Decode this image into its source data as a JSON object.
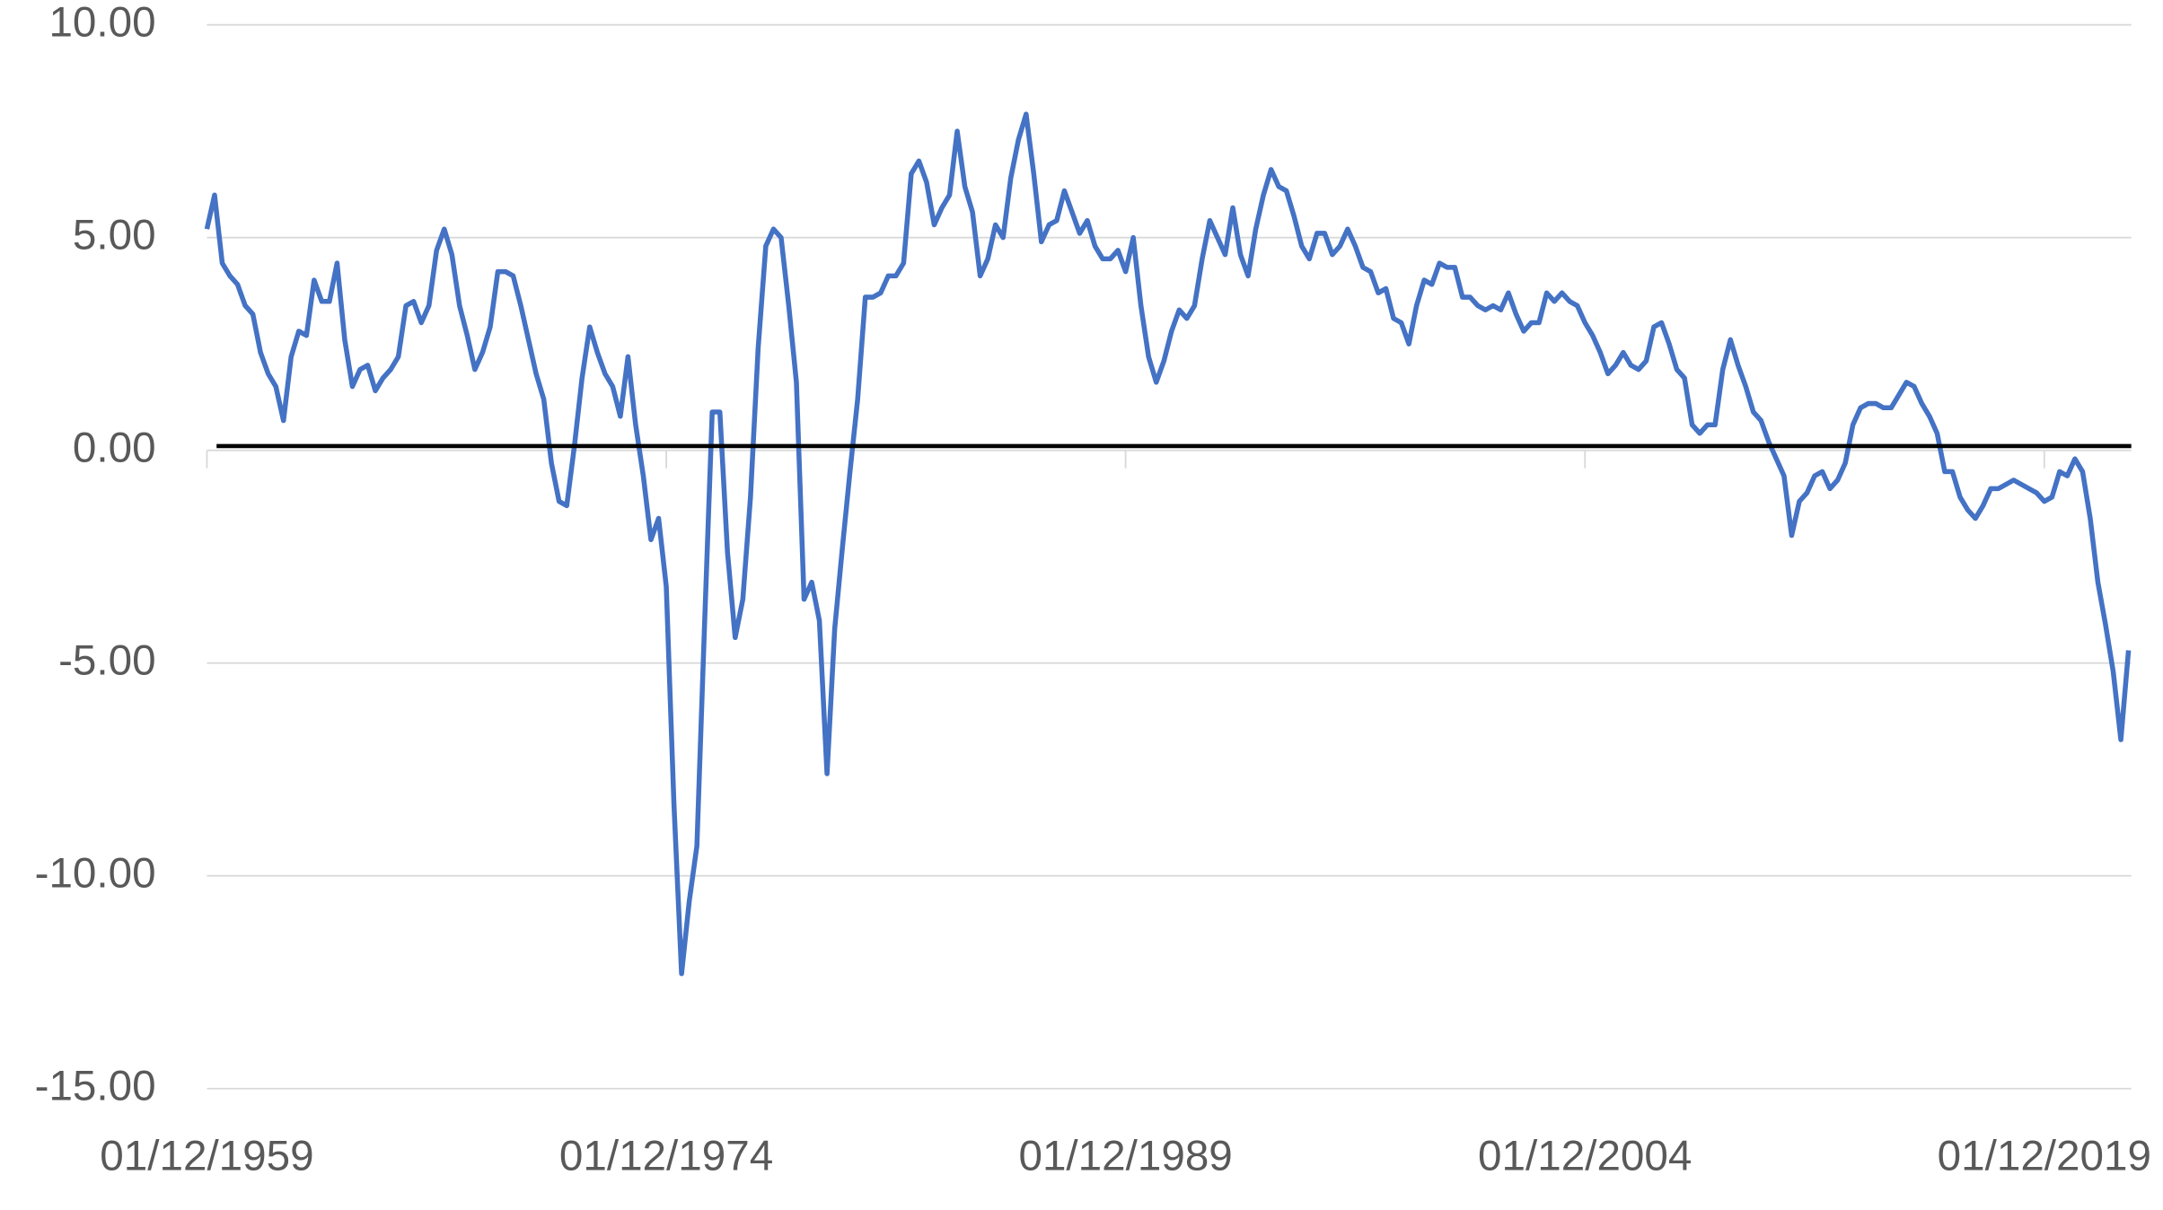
{
  "chart_data": {
    "type": "line",
    "x": [
      "01/12/1959",
      "01/03/1960",
      "01/06/1960",
      "01/09/1960",
      "01/12/1960",
      "01/03/1961",
      "01/06/1961",
      "01/09/1961",
      "01/12/1961",
      "01/03/1962",
      "01/06/1962",
      "01/09/1962",
      "01/12/1962",
      "01/03/1963",
      "01/06/1963",
      "01/09/1963",
      "01/12/1963",
      "01/03/1964",
      "01/06/1964",
      "01/09/1964",
      "01/12/1964",
      "01/03/1965",
      "01/06/1965",
      "01/09/1965",
      "01/12/1965",
      "01/03/1966",
      "01/06/1966",
      "01/09/1966",
      "01/12/1966",
      "01/03/1967",
      "01/06/1967",
      "01/09/1967",
      "01/12/1967",
      "01/03/1968",
      "01/06/1968",
      "01/09/1968",
      "01/12/1968",
      "01/03/1969",
      "01/06/1969",
      "01/09/1969",
      "01/12/1969",
      "01/03/1970",
      "01/06/1970",
      "01/09/1970",
      "01/12/1970",
      "01/03/1971",
      "01/06/1971",
      "01/09/1971",
      "01/12/1971",
      "01/03/1972",
      "01/06/1972",
      "01/09/1972",
      "01/12/1972",
      "01/03/1973",
      "01/06/1973",
      "01/09/1973",
      "01/12/1973",
      "01/03/1974",
      "01/06/1974",
      "01/09/1974",
      "01/12/1974",
      "01/03/1975",
      "01/06/1975",
      "01/09/1975",
      "01/12/1975",
      "01/03/1976",
      "01/06/1976",
      "01/09/1976",
      "01/12/1976",
      "01/03/1977",
      "01/06/1977",
      "01/09/1977",
      "01/12/1977",
      "01/03/1978",
      "01/06/1978",
      "01/09/1978",
      "01/12/1978",
      "01/03/1979",
      "01/06/1979",
      "01/09/1979",
      "01/12/1979",
      "01/03/1980",
      "01/06/1980",
      "01/09/1980",
      "01/12/1980",
      "01/03/1981",
      "01/06/1981",
      "01/09/1981",
      "01/12/1981",
      "01/03/1982",
      "01/06/1982",
      "01/09/1982",
      "01/12/1982",
      "01/03/1983",
      "01/06/1983",
      "01/09/1983",
      "01/12/1983",
      "01/03/1984",
      "01/06/1984",
      "01/09/1984",
      "01/12/1984",
      "01/03/1985",
      "01/06/1985",
      "01/09/1985",
      "01/12/1985",
      "01/03/1986",
      "01/06/1986",
      "01/09/1986",
      "01/12/1986",
      "01/03/1987",
      "01/06/1987",
      "01/09/1987",
      "01/12/1987",
      "01/03/1988",
      "01/06/1988",
      "01/09/1988",
      "01/12/1988",
      "01/03/1989",
      "01/06/1989",
      "01/09/1989",
      "01/12/1989",
      "01/03/1990",
      "01/06/1990",
      "01/09/1990",
      "01/12/1990",
      "01/03/1991",
      "01/06/1991",
      "01/09/1991",
      "01/12/1991",
      "01/03/1992",
      "01/06/1992",
      "01/09/1992",
      "01/12/1992",
      "01/03/1993",
      "01/06/1993",
      "01/09/1993",
      "01/12/1993",
      "01/03/1994",
      "01/06/1994",
      "01/09/1994",
      "01/12/1994",
      "01/03/1995",
      "01/06/1995",
      "01/09/1995",
      "01/12/1995",
      "01/03/1996",
      "01/06/1996",
      "01/09/1996",
      "01/12/1996",
      "01/03/1997",
      "01/06/1997",
      "01/09/1997",
      "01/12/1997",
      "01/03/1998",
      "01/06/1998",
      "01/09/1998",
      "01/12/1998",
      "01/03/1999",
      "01/06/1999",
      "01/09/1999",
      "01/12/1999",
      "01/03/2000",
      "01/06/2000",
      "01/09/2000",
      "01/12/2000",
      "01/03/2001",
      "01/06/2001",
      "01/09/2001",
      "01/12/2001",
      "01/03/2002",
      "01/06/2002",
      "01/09/2002",
      "01/12/2002",
      "01/03/2003",
      "01/06/2003",
      "01/09/2003",
      "01/12/2003",
      "01/03/2004",
      "01/06/2004",
      "01/09/2004",
      "01/12/2004",
      "01/03/2005",
      "01/06/2005",
      "01/09/2005",
      "01/12/2005",
      "01/03/2006",
      "01/06/2006",
      "01/09/2006",
      "01/12/2006",
      "01/03/2007",
      "01/06/2007",
      "01/09/2007",
      "01/12/2007",
      "01/03/2008",
      "01/06/2008",
      "01/09/2008",
      "01/12/2008",
      "01/03/2009",
      "01/06/2009",
      "01/09/2009",
      "01/12/2009",
      "01/03/2010",
      "01/06/2010",
      "01/09/2010",
      "01/12/2010",
      "01/03/2011",
      "01/06/2011",
      "01/09/2011",
      "01/12/2011",
      "01/03/2012",
      "01/06/2012",
      "01/09/2012",
      "01/12/2012",
      "01/03/2013",
      "01/06/2013",
      "01/09/2013",
      "01/12/2013",
      "01/03/2014",
      "01/06/2014",
      "01/09/2014",
      "01/12/2014",
      "01/03/2015",
      "01/06/2015",
      "01/09/2015",
      "01/12/2015",
      "01/03/2016",
      "01/06/2016",
      "01/09/2016",
      "01/12/2016",
      "01/03/2017",
      "01/06/2017",
      "01/09/2017",
      "01/12/2017",
      "01/03/2018",
      "01/06/2018",
      "01/09/2018",
      "01/12/2018",
      "01/03/2019",
      "01/06/2019",
      "01/09/2019",
      "01/12/2019",
      "01/03/2020",
      "01/06/2020",
      "01/09/2020",
      "01/12/2020",
      "01/03/2021",
      "01/06/2021",
      "01/09/2021",
      "01/12/2021",
      "01/03/2022",
      "01/06/2022",
      "01/09/2022"
    ],
    "series": [
      {
        "color": "#4472c4",
        "values": [
          5.2,
          6.0,
          4.4,
          4.1,
          3.9,
          3.4,
          3.2,
          2.3,
          1.8,
          1.5,
          0.7,
          2.2,
          2.8,
          2.7,
          4.0,
          3.5,
          3.5,
          4.4,
          2.6,
          1.5,
          1.9,
          2.0,
          1.4,
          1.7,
          1.9,
          2.2,
          3.4,
          3.5,
          3.0,
          3.4,
          4.7,
          5.2,
          4.6,
          3.4,
          2.7,
          1.9,
          2.3,
          2.9,
          4.2,
          4.2,
          4.1,
          3.4,
          2.6,
          1.8,
          1.2,
          -0.3,
          -1.2,
          -1.3,
          0.1,
          1.7,
          2.9,
          2.3,
          1.8,
          1.5,
          0.8,
          2.2,
          0.6,
          -0.6,
          -2.1,
          -1.6,
          -3.2,
          -8.3,
          -12.3,
          -10.6,
          -9.3,
          -4.1,
          0.9,
          0.9,
          -2.4,
          -4.4,
          -3.5,
          -1.1,
          2.4,
          4.8,
          5.2,
          5.0,
          3.4,
          1.6,
          -3.5,
          -3.1,
          -4.0,
          -7.6,
          -4.2,
          -2.3,
          -0.5,
          1.2,
          3.6,
          3.6,
          3.7,
          4.1,
          4.1,
          4.4,
          6.5,
          6.8,
          6.3,
          5.3,
          5.7,
          6.0,
          7.5,
          6.2,
          5.6,
          4.1,
          4.5,
          5.3,
          5.0,
          6.4,
          7.3,
          7.9,
          6.5,
          4.9,
          5.3,
          5.4,
          6.1,
          5.6,
          5.1,
          5.4,
          4.8,
          4.5,
          4.5,
          4.7,
          4.2,
          5.0,
          3.4,
          2.2,
          1.6,
          2.1,
          2.8,
          3.3,
          3.1,
          3.4,
          4.5,
          5.4,
          5.0,
          4.6,
          5.7,
          4.6,
          4.1,
          5.2,
          6.0,
          6.6,
          6.2,
          6.1,
          5.5,
          4.8,
          4.5,
          5.1,
          5.1,
          4.6,
          4.8,
          5.2,
          4.8,
          4.3,
          4.2,
          3.7,
          3.8,
          3.1,
          3.0,
          2.5,
          3.4,
          4.0,
          3.9,
          4.4,
          4.3,
          4.3,
          3.6,
          3.6,
          3.4,
          3.3,
          3.4,
          3.3,
          3.7,
          3.2,
          2.8,
          3.0,
          3.0,
          3.7,
          3.5,
          3.7,
          3.5,
          3.4,
          3.0,
          2.7,
          2.3,
          1.8,
          2.0,
          2.3,
          2.0,
          1.9,
          2.1,
          2.9,
          3.0,
          2.5,
          1.9,
          1.7,
          0.6,
          0.4,
          0.6,
          0.6,
          1.9,
          2.6,
          2.0,
          1.5,
          0.9,
          0.7,
          0.2,
          -0.2,
          -0.6,
          -2.0,
          -1.2,
          -1.0,
          -0.6,
          -0.5,
          -0.9,
          -0.7,
          -0.3,
          0.6,
          1.0,
          1.1,
          1.1,
          1.0,
          1.0,
          1.3,
          1.6,
          1.5,
          1.1,
          0.8,
          0.4,
          -0.5,
          -0.5,
          -1.1,
          -1.4,
          -1.6,
          -1.3,
          -0.9,
          -0.9,
          -0.8,
          -0.7,
          -0.8,
          -0.9,
          -1.0,
          -1.2,
          -1.1,
          -0.5,
          -0.6,
          -0.2,
          -0.5,
          -1.6,
          -3.1,
          -4.1,
          -5.2,
          -6.8,
          -4.7
        ]
      }
    ],
    "reference_line": {
      "value": 0.1,
      "color": "#000000"
    },
    "xlim": [
      "01/12/1959",
      "01/09/2022"
    ],
    "xticks": [
      "01/12/1959",
      "01/12/1974",
      "01/12/1989",
      "01/12/2004",
      "01/12/2019"
    ],
    "ylim": [
      -15,
      10
    ],
    "yticks": [
      {
        "value": -15,
        "label": "-15.00"
      },
      {
        "value": -10,
        "label": "-10.00"
      },
      {
        "value": -5,
        "label": "-5.00"
      },
      {
        "value": 0,
        "label": "0.00"
      },
      {
        "value": 5,
        "label": "5.00"
      },
      {
        "value": 10,
        "label": "10.00"
      }
    ],
    "grid": true
  }
}
